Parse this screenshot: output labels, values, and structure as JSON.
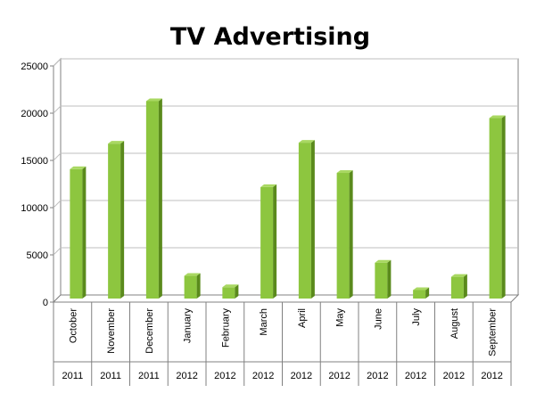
{
  "chart_data": {
    "type": "bar",
    "title": "TV Advertising",
    "xlabel": "",
    "ylabel": "",
    "ylim": [
      0,
      25000
    ],
    "yticks": [
      0,
      5000,
      10000,
      15000,
      20000,
      25000
    ],
    "grid": true,
    "legend": "none",
    "categories": [
      {
        "month": "October",
        "year": "2011"
      },
      {
        "month": "November",
        "year": "2011"
      },
      {
        "month": "December",
        "year": "2011"
      },
      {
        "month": "January",
        "year": "2012"
      },
      {
        "month": "February",
        "year": "2012"
      },
      {
        "month": "March",
        "year": "2012"
      },
      {
        "month": "April",
        "year": "2012"
      },
      {
        "month": "May",
        "year": "2012"
      },
      {
        "month": "June",
        "year": "2012"
      },
      {
        "month": "July",
        "year": "2012"
      },
      {
        "month": "August",
        "year": "2012"
      },
      {
        "month": "September",
        "year": "2012"
      }
    ],
    "values": [
      13700,
      16400,
      20900,
      2400,
      1200,
      11800,
      16500,
      13300,
      3800,
      900,
      2300,
      19100
    ],
    "colors": {
      "bar_front": "#8dc63f",
      "bar_side": "#5a8a1c",
      "bar_top": "#a9d862",
      "grid": "#bfbfbf",
      "axis": "#808080"
    }
  }
}
